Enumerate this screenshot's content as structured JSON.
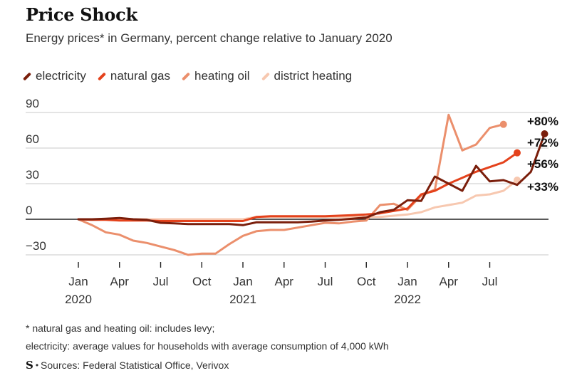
{
  "header": {
    "title": "Price Shock",
    "subtitle": "Energy prices* in Germany, percent change relative to January 2020"
  },
  "legend": [
    {
      "label": "electricity",
      "color": "#7a1e0b"
    },
    {
      "label": "natural gas",
      "color": "#e4421c"
    },
    {
      "label": "heating oil",
      "color": "#eb8f6c"
    },
    {
      "label": "district heating",
      "color": "#f7c8b0"
    }
  ],
  "footer": {
    "note1": "* natural gas and heating oil: includes levy;",
    "note2": "electricity: average values for households with average consumption of 4,000 kWh",
    "logo": "S",
    "sources": "Sources: Federal Statistical Office, Verivox"
  },
  "chart_data": {
    "type": "line",
    "y_ticks": [
      "90",
      "60",
      "30",
      "0",
      "−30"
    ],
    "y_tick_values": [
      90,
      60,
      30,
      0,
      -30
    ],
    "ylim": [
      -30,
      90
    ],
    "x_tick_months": [
      0,
      3,
      6,
      9,
      12,
      15,
      18,
      21,
      24,
      27,
      30
    ],
    "x_tick_labels": [
      "Jan",
      "Apr",
      "Jul",
      "Oct",
      "Jan",
      "Apr",
      "Jul",
      "Oct",
      "Jan",
      "Apr",
      "Jul"
    ],
    "x_year_labels": [
      {
        "month": 0,
        "label": "2020"
      },
      {
        "month": 12,
        "label": "2021"
      },
      {
        "month": 24,
        "label": "2022"
      }
    ],
    "x_start": "Jan 2020",
    "series": [
      {
        "name": "electricity",
        "color": "#7a1e0b",
        "end_label": "+72%",
        "values": [
          0,
          0,
          0.5,
          1,
          0,
          -0.5,
          -3,
          -3.5,
          -4,
          -4,
          -4,
          -4,
          -5,
          -2.5,
          -2.5,
          -2.5,
          -2.5,
          -2,
          -1,
          -0.5,
          0.5,
          1.5,
          6,
          8,
          16,
          15.5,
          36,
          30,
          24,
          45,
          32,
          33,
          29,
          40,
          72
        ]
      },
      {
        "name": "natural gas",
        "color": "#e4421c",
        "end_label": "+56%",
        "values": [
          0,
          -0.5,
          -0.5,
          -1,
          -1,
          -1,
          -1.5,
          -1.5,
          -1.5,
          -1.5,
          -1.5,
          -1.5,
          -1.5,
          2,
          2.5,
          2.5,
          2.5,
          2.5,
          2.5,
          3,
          3.5,
          4,
          5,
          7,
          9,
          21,
          24,
          30,
          35,
          40,
          44,
          48,
          56
        ]
      },
      {
        "name": "heating oil",
        "color": "#eb8f6c",
        "end_label": "+80%",
        "values": [
          0,
          -5,
          -11,
          -13,
          -18,
          -20,
          -23,
          -26,
          -30,
          -29,
          -29,
          -21,
          -14,
          -10,
          -9,
          -9,
          -7,
          -5,
          -3,
          -3.5,
          -2,
          -1,
          12,
          13,
          8,
          20,
          25,
          88,
          58,
          63,
          77,
          80
        ]
      },
      {
        "name": "district heating",
        "color": "#f7c8b0",
        "end_label": "+33%",
        "values": [
          0,
          0,
          0,
          0,
          0,
          0,
          0,
          0,
          0,
          0,
          0,
          0,
          0,
          2,
          2,
          2,
          2,
          2,
          2,
          2,
          2,
          2,
          2,
          3,
          4,
          6,
          10,
          12,
          14,
          20,
          21,
          24,
          33
        ]
      }
    ]
  }
}
